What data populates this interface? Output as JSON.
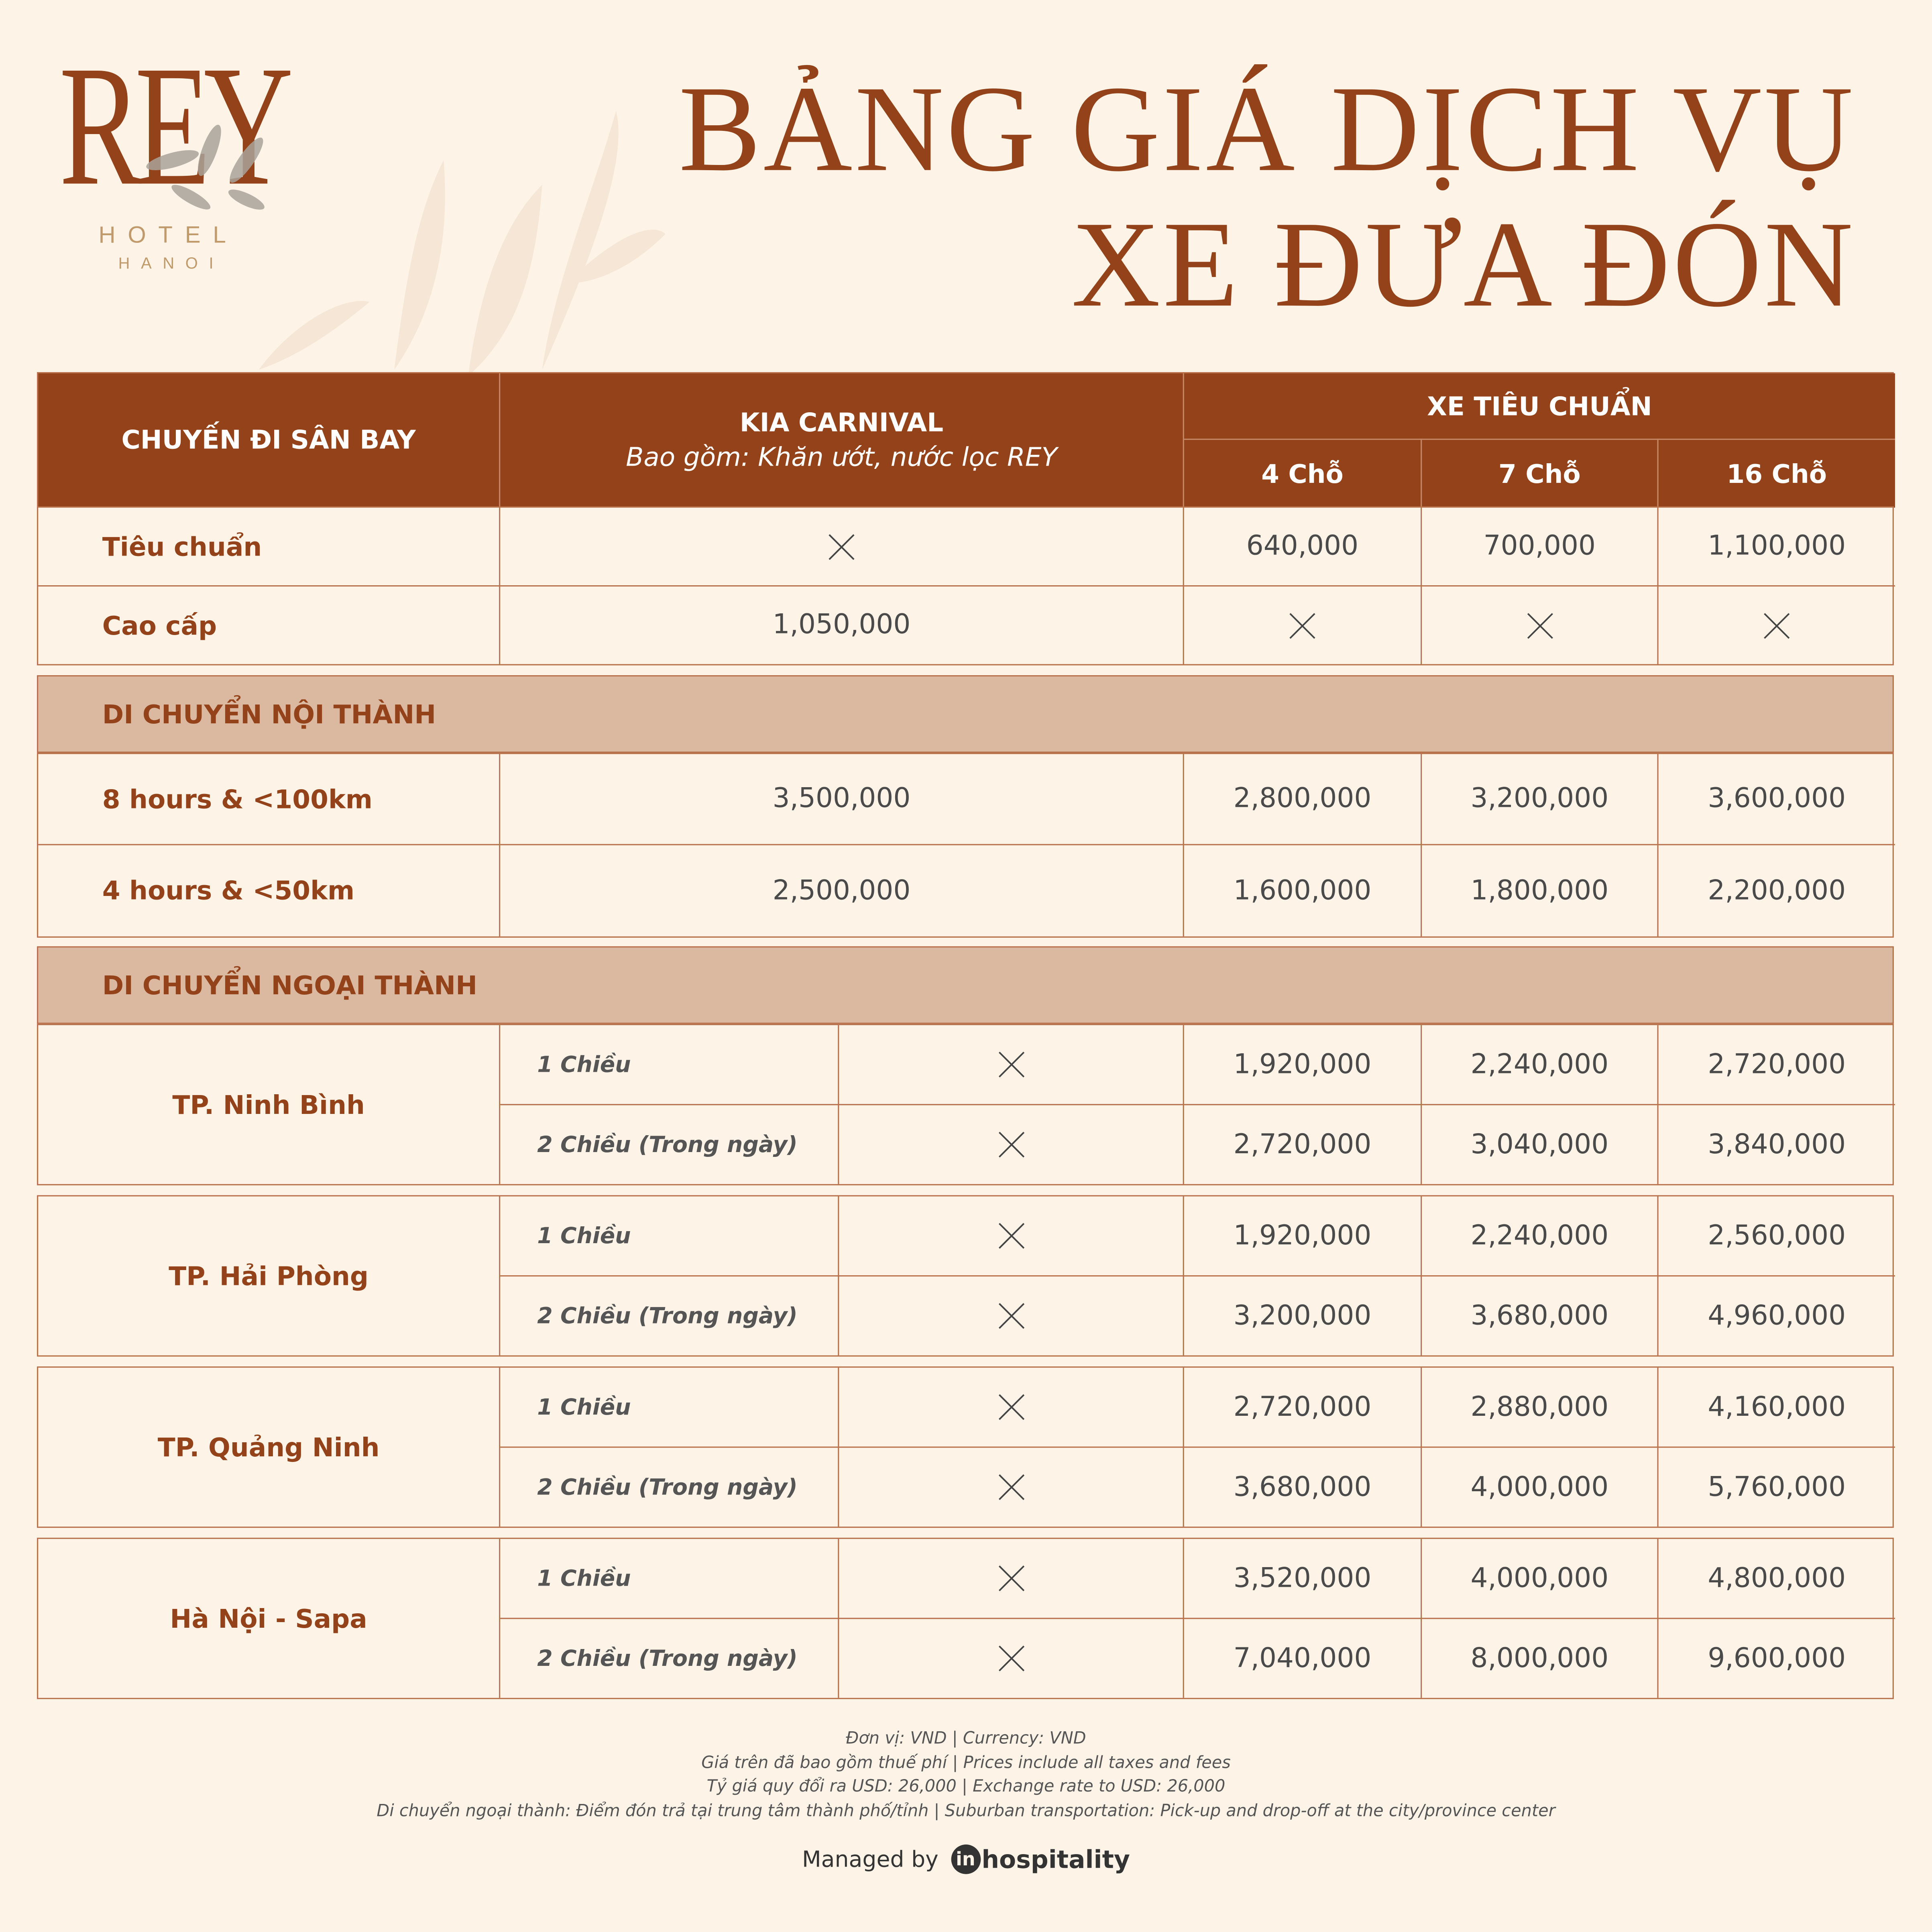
{
  "brand": {
    "logo_text": "REY",
    "line1": "HOTEL",
    "line2": "HANOI",
    "color": "#93421a",
    "accent": "#c19a6b"
  },
  "title": {
    "line1": "BẢNG GIÁ DỊCH VỤ",
    "line2": "XE ĐƯA ĐÓN"
  },
  "colors": {
    "header_bg": "#93421a",
    "section_bg": "#dbb9a1",
    "page_bg": "#fdf3e7",
    "border": "#b7704a"
  },
  "header": {
    "col1": "CHUYẾN ĐI SÂN BAY",
    "carnival": "KIA CARNIVAL",
    "carnival_sub": "Bao gồm: Khăn ướt, nước lọc REY",
    "standard": "XE TIÊU CHUẨN",
    "seats": [
      "4 Chỗ",
      "7 Chỗ",
      "16 Chỗ"
    ]
  },
  "not_available_icon": "cross-icon",
  "airport": [
    {
      "label": "Tiêu chuẩn",
      "carnival": null,
      "prices": [
        "640,000",
        "700,000",
        "1,100,000"
      ]
    },
    {
      "label": "Cao cấp",
      "carnival": "1,050,000",
      "prices": [
        null,
        null,
        null
      ]
    }
  ],
  "inner_city": {
    "title": "DI CHUYỂN NỘI THÀNH",
    "rows": [
      {
        "label": "8 hours & <100km",
        "carnival": "3,500,000",
        "prices": [
          "2,800,000",
          "3,200,000",
          "3,600,000"
        ]
      },
      {
        "label": "4 hours & <50km",
        "carnival": "2,500,000",
        "prices": [
          "1,600,000",
          "1,800,000",
          "2,200,000"
        ]
      }
    ]
  },
  "suburban": {
    "title": "DI CHUYỂN NGOẠI THÀNH",
    "destinations": [
      {
        "label": "TP. Ninh Bình",
        "trips": [
          {
            "trip": "1 Chiều",
            "carnival": null,
            "prices": [
              "1,920,000",
              "2,240,000",
              "2,720,000"
            ]
          },
          {
            "trip": "2 Chiều (Trong ngày)",
            "carnival": null,
            "prices": [
              "2,720,000",
              "3,040,000",
              "3,840,000"
            ]
          }
        ]
      },
      {
        "label": "TP. Hải Phòng",
        "trips": [
          {
            "trip": "1 Chiều",
            "carnival": null,
            "prices": [
              "1,920,000",
              "2,240,000",
              "2,560,000"
            ]
          },
          {
            "trip": "2 Chiều (Trong ngày)",
            "carnival": null,
            "prices": [
              "3,200,000",
              "3,680,000",
              "4,960,000"
            ]
          }
        ]
      },
      {
        "label": "TP. Quảng Ninh",
        "trips": [
          {
            "trip": "1 Chiều",
            "carnival": null,
            "prices": [
              "2,720,000",
              "2,880,000",
              "4,160,000"
            ]
          },
          {
            "trip": "2 Chiều (Trong ngày)",
            "carnival": null,
            "prices": [
              "3,680,000",
              "4,000,000",
              "5,760,000"
            ]
          }
        ]
      },
      {
        "label": "Hà Nội - Sapa",
        "trips": [
          {
            "trip": "1 Chiều",
            "carnival": null,
            "prices": [
              "3,520,000",
              "4,000,000",
              "4,800,000"
            ]
          },
          {
            "trip": "2 Chiều (Trong ngày)",
            "carnival": null,
            "prices": [
              "7,040,000",
              "8,000,000",
              "9,600,000"
            ]
          }
        ]
      }
    ]
  },
  "footer": {
    "notes": [
      "Đơn vị: VND | Currency: VND",
      "Giá trên đã bao gồm thuế phí | Prices include all taxes and fees",
      "Tỷ giá quy đổi ra USD: 26,000 | Exchange rate to USD: 26,000",
      "Di chuyển ngoại thành: Điểm đón trả tại trung tâm thành phố/tỉnh | Suburban transportation: Pick-up and drop-off at the city/province center"
    ],
    "managed_by": "Managed by",
    "partner_mark": "in",
    "partner": "hospitality"
  }
}
